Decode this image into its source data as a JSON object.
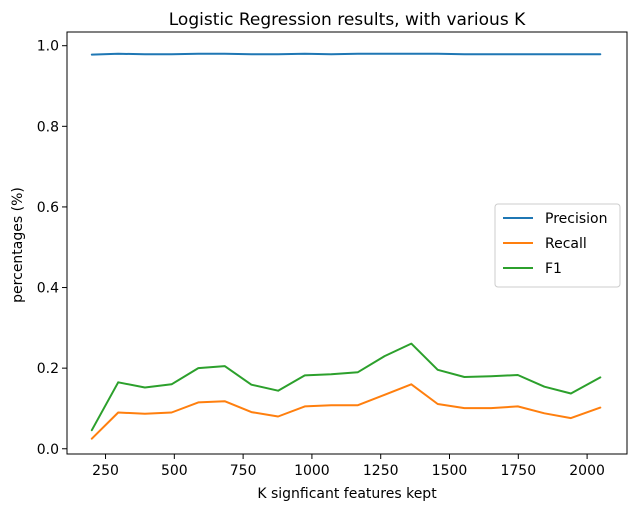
{
  "chart_data": {
    "type": "line",
    "title": "Logistic Regression results, with various K",
    "xlabel": "K signficant features kept",
    "ylabel": "percentages (%)",
    "xlim": [
      110,
      2145
    ],
    "ylim": [
      -0.013,
      1.034
    ],
    "xticks": [
      250,
      500,
      750,
      1000,
      1250,
      1500,
      1750,
      2000
    ],
    "yticks": [
      0.0,
      0.2,
      0.4,
      0.6,
      0.8,
      1.0
    ],
    "grid": false,
    "legend_position": "center-right",
    "x": [
      200,
      296,
      393,
      490,
      587,
      683,
      780,
      877,
      974,
      1070,
      1167,
      1264,
      1361,
      1457,
      1554,
      1651,
      1748,
      1845,
      1941,
      2048
    ],
    "series": [
      {
        "name": "Precision",
        "color": "#1f77b4",
        "values": [
          0.978,
          0.98,
          0.979,
          0.979,
          0.98,
          0.98,
          0.979,
          0.979,
          0.98,
          0.979,
          0.98,
          0.98,
          0.98,
          0.98,
          0.979,
          0.979,
          0.979,
          0.979,
          0.979,
          0.979
        ]
      },
      {
        "name": "Recall",
        "color": "#ff7f0e",
        "values": [
          0.025,
          0.09,
          0.087,
          0.09,
          0.115,
          0.118,
          0.091,
          0.08,
          0.105,
          0.108,
          0.108,
          0.134,
          0.16,
          0.111,
          0.101,
          0.101,
          0.105,
          0.088,
          0.076,
          0.102
        ]
      },
      {
        "name": "F1",
        "color": "#2ca02c",
        "values": [
          0.046,
          0.165,
          0.152,
          0.16,
          0.2,
          0.205,
          0.159,
          0.144,
          0.182,
          0.185,
          0.19,
          0.23,
          0.261,
          0.196,
          0.178,
          0.18,
          0.183,
          0.154,
          0.137,
          0.177
        ]
      }
    ]
  }
}
